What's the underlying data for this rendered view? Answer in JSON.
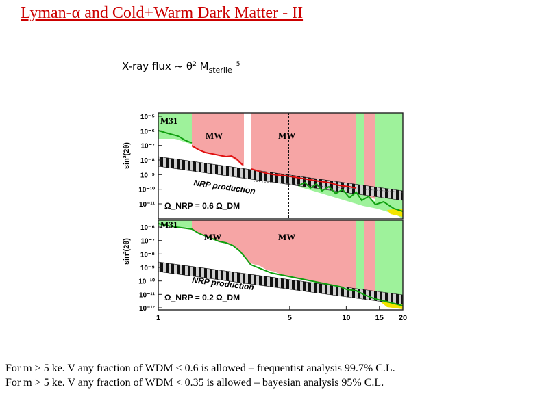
{
  "slide": {
    "title": "Lyman-α and Cold+Warm Dark Matter - II",
    "subtitle": {
      "prefix": "X-ray flux ~ θ",
      "exp2": "2",
      "mid": " M",
      "sub": "sterile",
      "exp5": "5"
    },
    "conclusions": [
      "For m > 5 ke. V any fraction of WDM < 0.6 is allowed – frequentist analysis 99.7% C.L.",
      "For m > 5 ke. V any fraction of WDM < 0.35 is allowed – bayesian analysis 95% C.L."
    ]
  },
  "colors": {
    "title": "#cc0000",
    "excluded_mw": "#f6a5a5",
    "excluded_green": "#9ef29b",
    "nrp_band": "#222222",
    "limit_red": "#e01010",
    "limit_green": "#10a010",
    "yellow": "#f2e400"
  },
  "chart_data": [
    {
      "type": "area",
      "panel": "top",
      "xlabel": "",
      "ylabel": "sin²(2θ)",
      "x_scale": "log",
      "xlim": [
        1,
        20
      ],
      "y_ticks": [
        "10⁻⁵",
        "10⁻⁶",
        "10⁻⁷",
        "10⁻⁸",
        "10⁻⁹",
        "10⁻¹⁰",
        "10⁻¹¹"
      ],
      "ylim_exponent": [
        -11.7,
        -5
      ],
      "region_labels": [
        "M31",
        "MW",
        "MW"
      ],
      "band_label": "NRP production",
      "fraction_label": "Ω_NRP = 0.6 Ω_DM",
      "fraction": 0.6,
      "marker_x": 5,
      "band_x": [
        1,
        20
      ],
      "band_log_y": [
        -8.3,
        -10.6
      ]
    },
    {
      "type": "area",
      "panel": "bottom",
      "xlabel": "",
      "ylabel": "sin²(2θ)",
      "x_scale": "log",
      "xlim": [
        1,
        20
      ],
      "x_ticks": [
        "1",
        "5",
        "10",
        "15",
        "20"
      ],
      "x_tick_values": [
        1,
        5,
        10,
        15,
        20
      ],
      "y_ticks": [
        "10⁻⁶",
        "10⁻⁷",
        "10⁻⁸",
        "10⁻⁹",
        "10⁻¹⁰",
        "10⁻¹¹",
        "10⁻¹²"
      ],
      "ylim_exponent": [
        -12.5,
        -5.5
      ],
      "region_labels": [
        "M31",
        "MW",
        "MW"
      ],
      "band_label": "NRP production",
      "fraction_label": "Ω_NRP = 0.2 Ω_DM",
      "fraction": 0.2,
      "band_x": [
        1,
        20
      ],
      "band_log_y": [
        -8.7,
        -11.0
      ]
    }
  ]
}
